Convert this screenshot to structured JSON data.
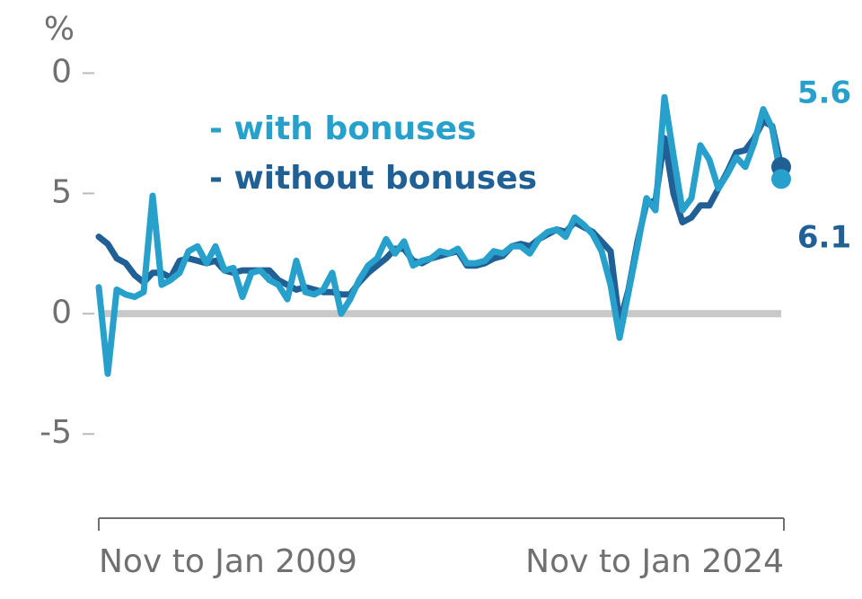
{
  "chart_data": {
    "type": "line",
    "y_unit": "%",
    "categories": [
      "Nov to Jan 2009",
      null,
      null,
      null,
      null,
      null,
      null,
      null,
      null,
      null,
      null,
      null,
      null,
      null,
      null,
      null,
      null,
      null,
      null,
      null,
      null,
      null,
      null,
      null,
      null,
      null,
      null,
      null,
      null,
      null,
      null,
      null,
      null,
      null,
      null,
      null,
      null,
      null,
      null,
      null,
      null,
      null,
      null,
      null,
      null,
      null,
      null,
      null,
      null,
      null,
      null,
      null,
      null,
      null,
      null,
      null,
      null,
      null,
      null,
      null,
      null,
      null,
      null,
      null,
      null,
      null,
      null,
      null,
      null,
      null,
      null,
      null,
      null,
      null,
      null,
      null,
      "Nov to Jan 2024"
    ],
    "series": [
      {
        "name": "- without bonuses",
        "color": "#206095",
        "values": [
          3.2,
          2.9,
          2.3,
          2.1,
          1.6,
          1.3,
          1.7,
          1.7,
          1.5,
          2.2,
          2.3,
          2.2,
          2.1,
          2.2,
          1.8,
          1.7,
          1.8,
          1.8,
          1.8,
          1.8,
          1.4,
          1.2,
          1.0,
          1.1,
          1.0,
          0.9,
          0.9,
          0.8,
          0.8,
          1.3,
          1.7,
          2.0,
          2.3,
          2.7,
          2.7,
          2.2,
          2.1,
          2.3,
          2.4,
          2.5,
          2.6,
          2.0,
          2.0,
          2.1,
          2.3,
          2.4,
          2.8,
          2.9,
          2.8,
          3.1,
          3.3,
          3.5,
          3.4,
          3.8,
          3.6,
          3.4,
          3.0,
          2.6,
          -0.4,
          1.0,
          3.0,
          4.6,
          4.7,
          7.3,
          5.0,
          3.8,
          4.0,
          4.5,
          4.5,
          5.2,
          5.9,
          6.7,
          6.8,
          7.3,
          8.0,
          7.8,
          6.1
        ]
      },
      {
        "name": "- with bonuses",
        "color": "#27a0cc",
        "values": [
          1.1,
          -2.5,
          1.0,
          0.8,
          0.7,
          0.9,
          4.9,
          1.2,
          1.4,
          1.7,
          2.6,
          2.8,
          2.1,
          2.8,
          1.8,
          1.9,
          0.7,
          1.7,
          1.8,
          1.4,
          1.2,
          0.6,
          2.2,
          0.9,
          0.8,
          1.0,
          1.7,
          0.0,
          0.6,
          1.4,
          2.0,
          2.3,
          3.1,
          2.5,
          3.0,
          2.0,
          2.2,
          2.3,
          2.6,
          2.5,
          2.7,
          2.1,
          2.1,
          2.2,
          2.6,
          2.5,
          2.8,
          2.8,
          2.5,
          3.1,
          3.4,
          3.5,
          3.2,
          4.0,
          3.7,
          3.3,
          2.6,
          1.2,
          -1.0,
          0.9,
          2.8,
          4.8,
          4.3,
          9.0,
          6.6,
          4.3,
          4.8,
          7.0,
          6.4,
          5.2,
          5.8,
          6.5,
          6.1,
          7.1,
          8.5,
          7.7,
          5.6
        ]
      }
    ],
    "ylim": [
      -8.5,
      10.8
    ],
    "yticks": [
      {
        "value": 10,
        "label": "0"
      },
      5,
      0,
      -5
    ],
    "zero_line": true,
    "end_markers": true
  }
}
